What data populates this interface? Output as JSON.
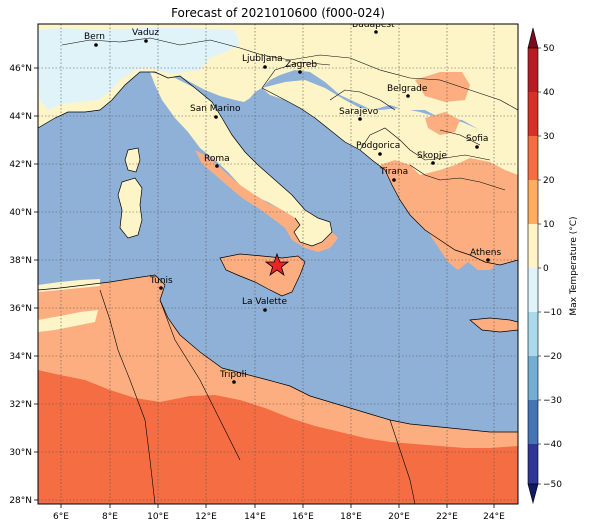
{
  "title": "Forecast of 2021010600 (f000-024)",
  "colorbar": {
    "label": "Max Temperature (°C)",
    "ticks": [
      "50",
      "40",
      "30",
      "20",
      "10",
      "0",
      "−10",
      "−20",
      "−30",
      "−40",
      "−50"
    ],
    "colors": [
      "#7a0c1e",
      "#b71c25",
      "#d73027",
      "#f46d43",
      "#fdae61",
      "#fef4c6",
      "#e0f3f8",
      "#abd9e9",
      "#74add1",
      "#4575b4",
      "#313695"
    ]
  },
  "axes": {
    "x_ticks": [
      "6°E",
      "8°E",
      "10°E",
      "12°E",
      "14°E",
      "16°E",
      "18°E",
      "20°E",
      "22°E",
      "24°E"
    ],
    "y_ticks": [
      "46°N",
      "44°N",
      "42°N",
      "40°N",
      "38°N",
      "36°N",
      "34°N",
      "32°N",
      "30°N",
      "28°N"
    ]
  },
  "cities": [
    {
      "name": "Bern"
    },
    {
      "name": "Vaduz"
    },
    {
      "name": "Budapest"
    },
    {
      "name": "Ljubljana"
    },
    {
      "name": "Zagreb"
    },
    {
      "name": "Belgrade"
    },
    {
      "name": "San Marino"
    },
    {
      "name": "Sarajevo"
    },
    {
      "name": "Sofia"
    },
    {
      "name": "Podgorica"
    },
    {
      "name": "Skopje"
    },
    {
      "name": "Roma"
    },
    {
      "name": "Tirana"
    },
    {
      "name": "Athens"
    },
    {
      "name": "Tunis"
    },
    {
      "name": "La Valette"
    },
    {
      "name": "Tripoli"
    }
  ],
  "colors": {
    "sea": "#8fb1d8",
    "cool": "#fdf4c8",
    "warm": "#fdae80",
    "hot": "#f46d43",
    "cold": "#e0f3f8"
  }
}
